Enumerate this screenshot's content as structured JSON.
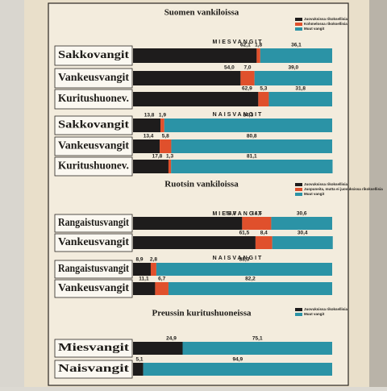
{
  "chart_data": [
    {
      "type": "bar",
      "orientation": "horizontal",
      "stacked": true,
      "title": "Suomen vankiloissa",
      "xlim": [
        0,
        100
      ],
      "series": [
        {
          "name": "Juovuksissa rikoksellisia",
          "color": "#1e1c1c"
        },
        {
          "name": "Kohmelossa rikoksellisia",
          "color": "#e0502c"
        },
        {
          "name": "Muut vangit",
          "color": "#2b93a6"
        }
      ],
      "groups": [
        {
          "title": "MIESVANGIT",
          "categories": [
            "Sakkovangit",
            "Vankeusvangit",
            "Kuritushuonev."
          ],
          "values": [
            [
              62.1,
              54.0,
              62.9
            ],
            [
              1.8,
              7.0,
              5.3
            ],
            [
              36.1,
              39.0,
              31.8
            ]
          ],
          "value_labels": [
            [
              "62,1",
              "54,0",
              "62,9"
            ],
            [
              "1,8",
              "7,0",
              "5,3"
            ],
            [
              "36,1",
              "39,0",
              "31,8"
            ]
          ]
        },
        {
          "title": "NAISVANGIT",
          "categories": [
            "Sakkovangit",
            "Vankeusvangit",
            "Kuritushuonev."
          ],
          "values": [
            [
              13.8,
              13.4,
              17.8
            ],
            [
              1.9,
              5.8,
              1.3
            ],
            [
              84.3,
              80.8,
              81.1
            ]
          ],
          "value_labels": [
            [
              "13,8",
              "13,4",
              "17,8"
            ],
            [
              "1,9",
              "5,8",
              "1,3"
            ],
            [
              "84,3",
              "80,8",
              "81,1"
            ]
          ]
        }
      ]
    },
    {
      "type": "bar",
      "orientation": "horizontal",
      "stacked": true,
      "title": "Ruotsin vankiloissa",
      "xlim": [
        0,
        100
      ],
      "series": [
        {
          "name": "Juovuksissa rikoksellisia",
          "color": "#1e1c1c"
        },
        {
          "name": "Juopuneita, mutta ei juovuksissa rikoksellisia",
          "color": "#e0502c"
        },
        {
          "name": "Muut vangit",
          "color": "#2b93a6"
        }
      ],
      "groups": [
        {
          "title": "MIESVANGIT",
          "categories": [
            "Rangaistusvangit",
            "Vankeusvangit"
          ],
          "values": [
            [
              54.8,
              61.5
            ],
            [
              14.6,
              8.4
            ],
            [
              30.6,
              30.4
            ]
          ],
          "value_labels": [
            [
              "54,8",
              "61,5"
            ],
            [
              "14,6",
              "8,4"
            ],
            [
              "30,6",
              "30,4"
            ]
          ]
        },
        {
          "title": "NAISVANGIT",
          "categories": [
            "Rangaistusvangit",
            "Vankeusvangit"
          ],
          "values": [
            [
              8.9,
              11.1
            ],
            [
              2.8,
              6.7
            ],
            [
              88.3,
              82.2
            ]
          ],
          "value_labels": [
            [
              "8,9",
              "11,1"
            ],
            [
              "2,8",
              "6,7"
            ],
            [
              "88,3",
              "82,2"
            ]
          ]
        }
      ]
    },
    {
      "type": "bar",
      "orientation": "horizontal",
      "stacked": true,
      "title": "Preussin kuritushuoneissa",
      "xlim": [
        0,
        100
      ],
      "series": [
        {
          "name": "Juovuksissa rikoksellisia",
          "color": "#1e1c1c"
        },
        {
          "name": "Muut vangit",
          "color": "#2b93a6"
        }
      ],
      "groups": [
        {
          "categories": [
            "Miesvangit",
            "Naisvangit"
          ],
          "values": [
            [
              24.9,
              5.1
            ],
            [
              75.1,
              94.9
            ]
          ],
          "value_labels": [
            [
              "24,9",
              "5,1"
            ],
            [
              "75,1",
              "94,9"
            ]
          ]
        }
      ]
    }
  ]
}
